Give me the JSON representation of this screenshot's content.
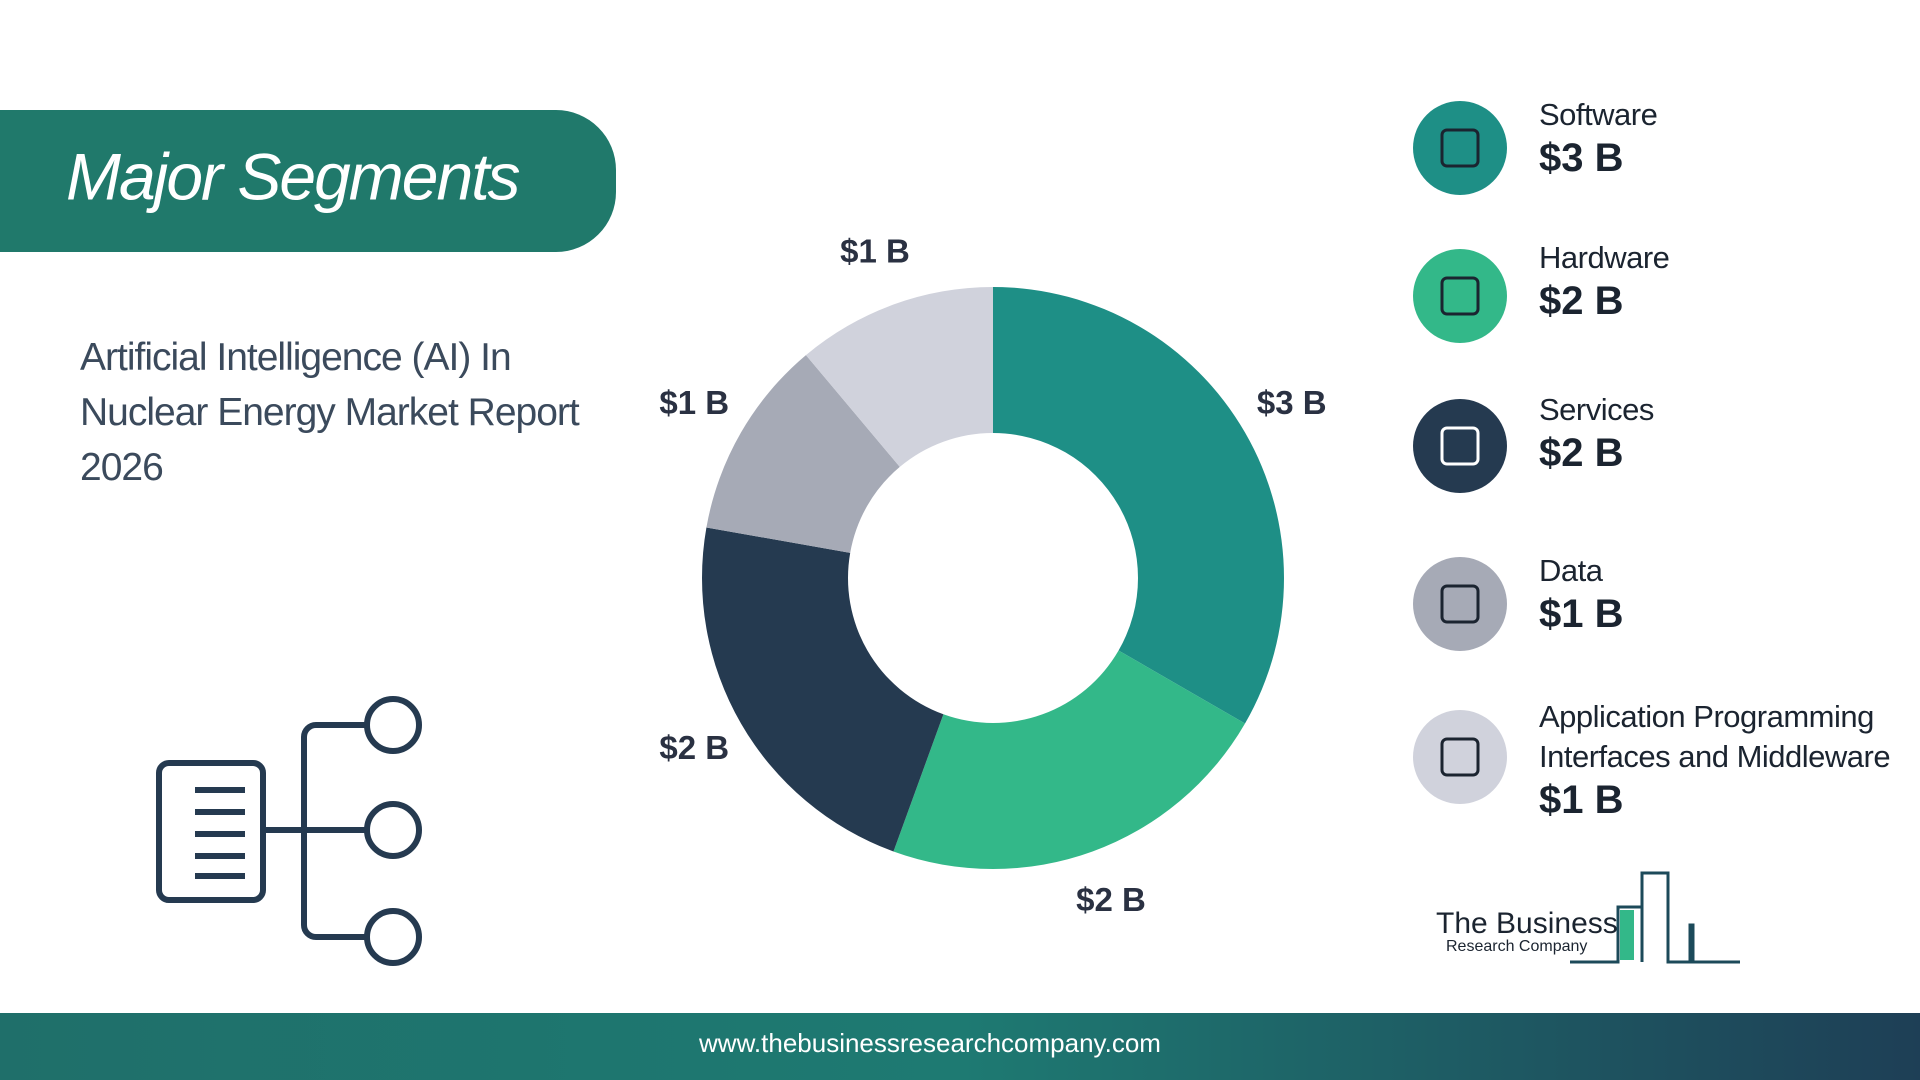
{
  "chart_data": {
    "type": "donut",
    "title": "Major Segments",
    "subtitle": "Artificial Intelligence (AI) In Nuclear Energy Market Report 2026",
    "categories": [
      "Software",
      "Hardware",
      "Services",
      "Data",
      "Application Programming Interfaces and Middleware"
    ],
    "values": [
      3,
      2,
      2,
      1,
      1
    ],
    "value_labels": [
      "$3 B",
      "$2 B",
      "$2 B",
      "$1 B",
      "$1 B"
    ],
    "colors": [
      "#1e8f86",
      "#33b889",
      "#253a50",
      "#a6aab6",
      "#d0d2dc"
    ]
  },
  "logo": {
    "line1": "The Business",
    "line2": "Research Company"
  },
  "footer": {
    "url": "www.thebusinessresearchcompany.com"
  }
}
